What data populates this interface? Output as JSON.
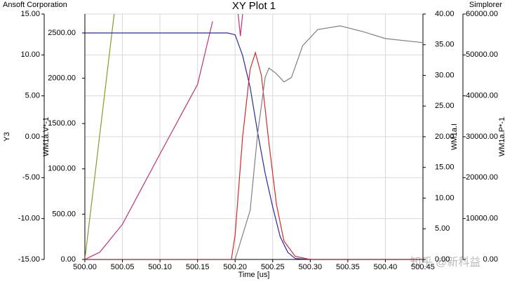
{
  "chart_data": {
    "type": "line",
    "title": "XY Plot 1",
    "corner_left": "Ansoft Corporation",
    "corner_right": "Simplorer",
    "watermark": "知乎 @新科益",
    "xlabel": "Time  [us]",
    "ylabel": "Y3",
    "y2label": "WM1a.V*-1",
    "y3label": "WM1a.I",
    "y4label": "WM1a.P*-1",
    "grid": true,
    "xlim": [
      500.0,
      500.45
    ],
    "xticks": [
      {
        "value": 500.0,
        "label": "500.00"
      },
      {
        "value": 500.05,
        "label": "500.05"
      },
      {
        "value": 500.1,
        "label": "500.10"
      },
      {
        "value": 500.15,
        "label": "500.15"
      },
      {
        "value": 500.2,
        "label": "500.20"
      },
      {
        "value": 500.25,
        "label": "500.25"
      },
      {
        "value": 500.3,
        "label": "500.30"
      },
      {
        "value": 500.35,
        "label": "500.35"
      },
      {
        "value": 500.4,
        "label": "500.40"
      },
      {
        "value": 500.45,
        "label": "500.45"
      }
    ],
    "ylim": [
      -15,
      15
    ],
    "yticks": [
      {
        "value": 15,
        "label": "15.00"
      },
      {
        "value": 10,
        "label": "10.00"
      },
      {
        "value": 5,
        "label": "5.00"
      },
      {
        "value": 0,
        "label": "0.00"
      },
      {
        "value": -5,
        "label": "-5.00"
      },
      {
        "value": -10,
        "label": "-10.00"
      },
      {
        "value": -15,
        "label": "-15.00"
      }
    ],
    "y2lim": [
      0,
      2709
    ],
    "y2ticks": [
      {
        "value": 2500,
        "label": "2500.00"
      },
      {
        "value": 2000,
        "label": "2000.00"
      },
      {
        "value": 1500,
        "label": "1500.00"
      },
      {
        "value": 1000,
        "label": "1000.00"
      },
      {
        "value": 500,
        "label": "500.00"
      },
      {
        "value": 0,
        "label": "0.00"
      }
    ],
    "y3lim": [
      0,
      40
    ],
    "y3ticks": [
      {
        "value": 40,
        "label": "40.00"
      },
      {
        "value": 35,
        "label": "35.00"
      },
      {
        "value": 30,
        "label": "30.00"
      },
      {
        "value": 25,
        "label": "25.00"
      },
      {
        "value": 20,
        "label": "20.00"
      },
      {
        "value": 15,
        "label": "15.00"
      },
      {
        "value": 10,
        "label": "10.00"
      },
      {
        "value": 5,
        "label": "5.00"
      },
      {
        "value": 0,
        "label": "0.00"
      }
    ],
    "y4lim": [
      0,
      60000
    ],
    "y4ticks": [
      {
        "value": 60000,
        "label": "60000.00"
      },
      {
        "value": 50000,
        "label": "50000.00"
      },
      {
        "value": 40000,
        "label": "40000.00"
      },
      {
        "value": 30000,
        "label": "30000.00"
      },
      {
        "value": 20000,
        "label": "20000.00"
      },
      {
        "value": 10000,
        "label": "10000.00"
      },
      {
        "value": 0,
        "label": "0.00"
      }
    ],
    "series": [
      {
        "color": "#8a9a2a",
        "axis": "y",
        "x": [
          500.0,
          500.039
        ],
        "values": [
          -15,
          15
        ]
      },
      {
        "color": "#c0307a",
        "axis": "y",
        "x": [
          500.0,
          500.02,
          500.05,
          500.1,
          500.15,
          500.17,
          500.18,
          500.204,
          500.207,
          500.21
        ],
        "values": [
          -15,
          -14.1,
          -10.7,
          -2.1,
          6.4,
          14.1,
          null,
          15,
          12.3,
          15
        ]
      },
      {
        "color": "#2a2aa0",
        "axis": "y2",
        "x": [
          500.0,
          500.19,
          500.2,
          500.21,
          500.22,
          500.23,
          500.24,
          500.25,
          500.26,
          500.27,
          500.28,
          500.3,
          500.45
        ],
        "values": [
          2500,
          2500,
          2480,
          2250,
          1900,
          1400,
          950,
          580,
          250,
          80,
          10,
          0,
          0
        ]
      },
      {
        "color": "#d42a2a",
        "axis": "y3",
        "x": [
          500.0,
          500.195,
          500.2,
          500.21,
          500.22,
          500.227,
          500.235,
          500.245,
          500.255,
          500.265,
          500.28,
          500.3,
          500.45
        ],
        "values": [
          0,
          0,
          4,
          20,
          31,
          33.7,
          30,
          19,
          9,
          3,
          0.5,
          0,
          0
        ]
      },
      {
        "color": "#808080",
        "axis": "y4",
        "x": [
          500.2,
          500.22,
          500.23,
          500.24,
          500.245,
          500.255,
          500.265,
          500.275,
          500.29,
          500.31,
          500.34,
          500.37,
          500.4,
          500.45
        ],
        "values": [
          0,
          12000,
          30800,
          44500,
          46800,
          45400,
          43400,
          44500,
          52300,
          56200,
          57100,
          55700,
          54000,
          53000
        ]
      }
    ]
  }
}
